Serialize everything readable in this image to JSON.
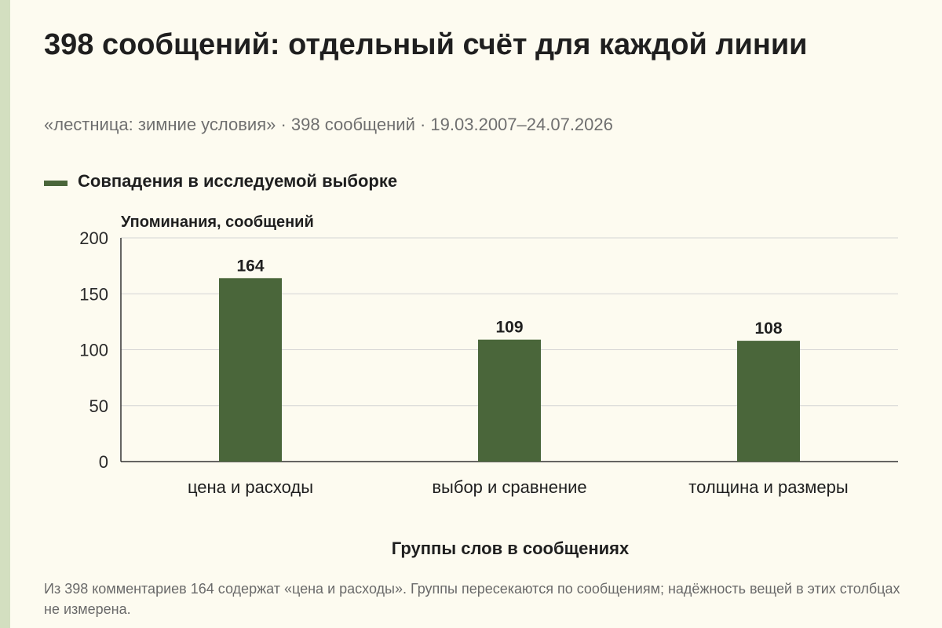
{
  "title": "398 сообщений: отдельный счёт для каждой линии",
  "subtitle": "«лестница: зимние условия» · 398 сообщений · 19.03.2007–24.07.2026",
  "note": "Из 398 комментариев 164 содержат «цена и расходы». Группы пересекаются по сообщениям; надёжность вещей в этих столбцах не измерена.",
  "colors": {
    "bar": "#4a663a",
    "background": "#fdfbf0",
    "side_strip": "#d3dfc0",
    "grid": "#d4d4d4",
    "axis": "#333333"
  },
  "chart_data": {
    "type": "bar",
    "categories": [
      "цена и расходы",
      "выбор и сравнение",
      "толщина и размеры"
    ],
    "series": [
      {
        "name": "Совпадения в исследуемой выборке",
        "values": [
          164,
          109,
          108
        ]
      }
    ],
    "data_labels": [
      "164",
      "109",
      "108"
    ],
    "xlabel": "Группы слов в сообщениях",
    "ylabel": "Упоминания, сообщений",
    "ylim": [
      0,
      200
    ],
    "yticks": [
      0,
      50,
      100,
      150,
      200
    ],
    "grid": true,
    "legend": "top-left"
  }
}
